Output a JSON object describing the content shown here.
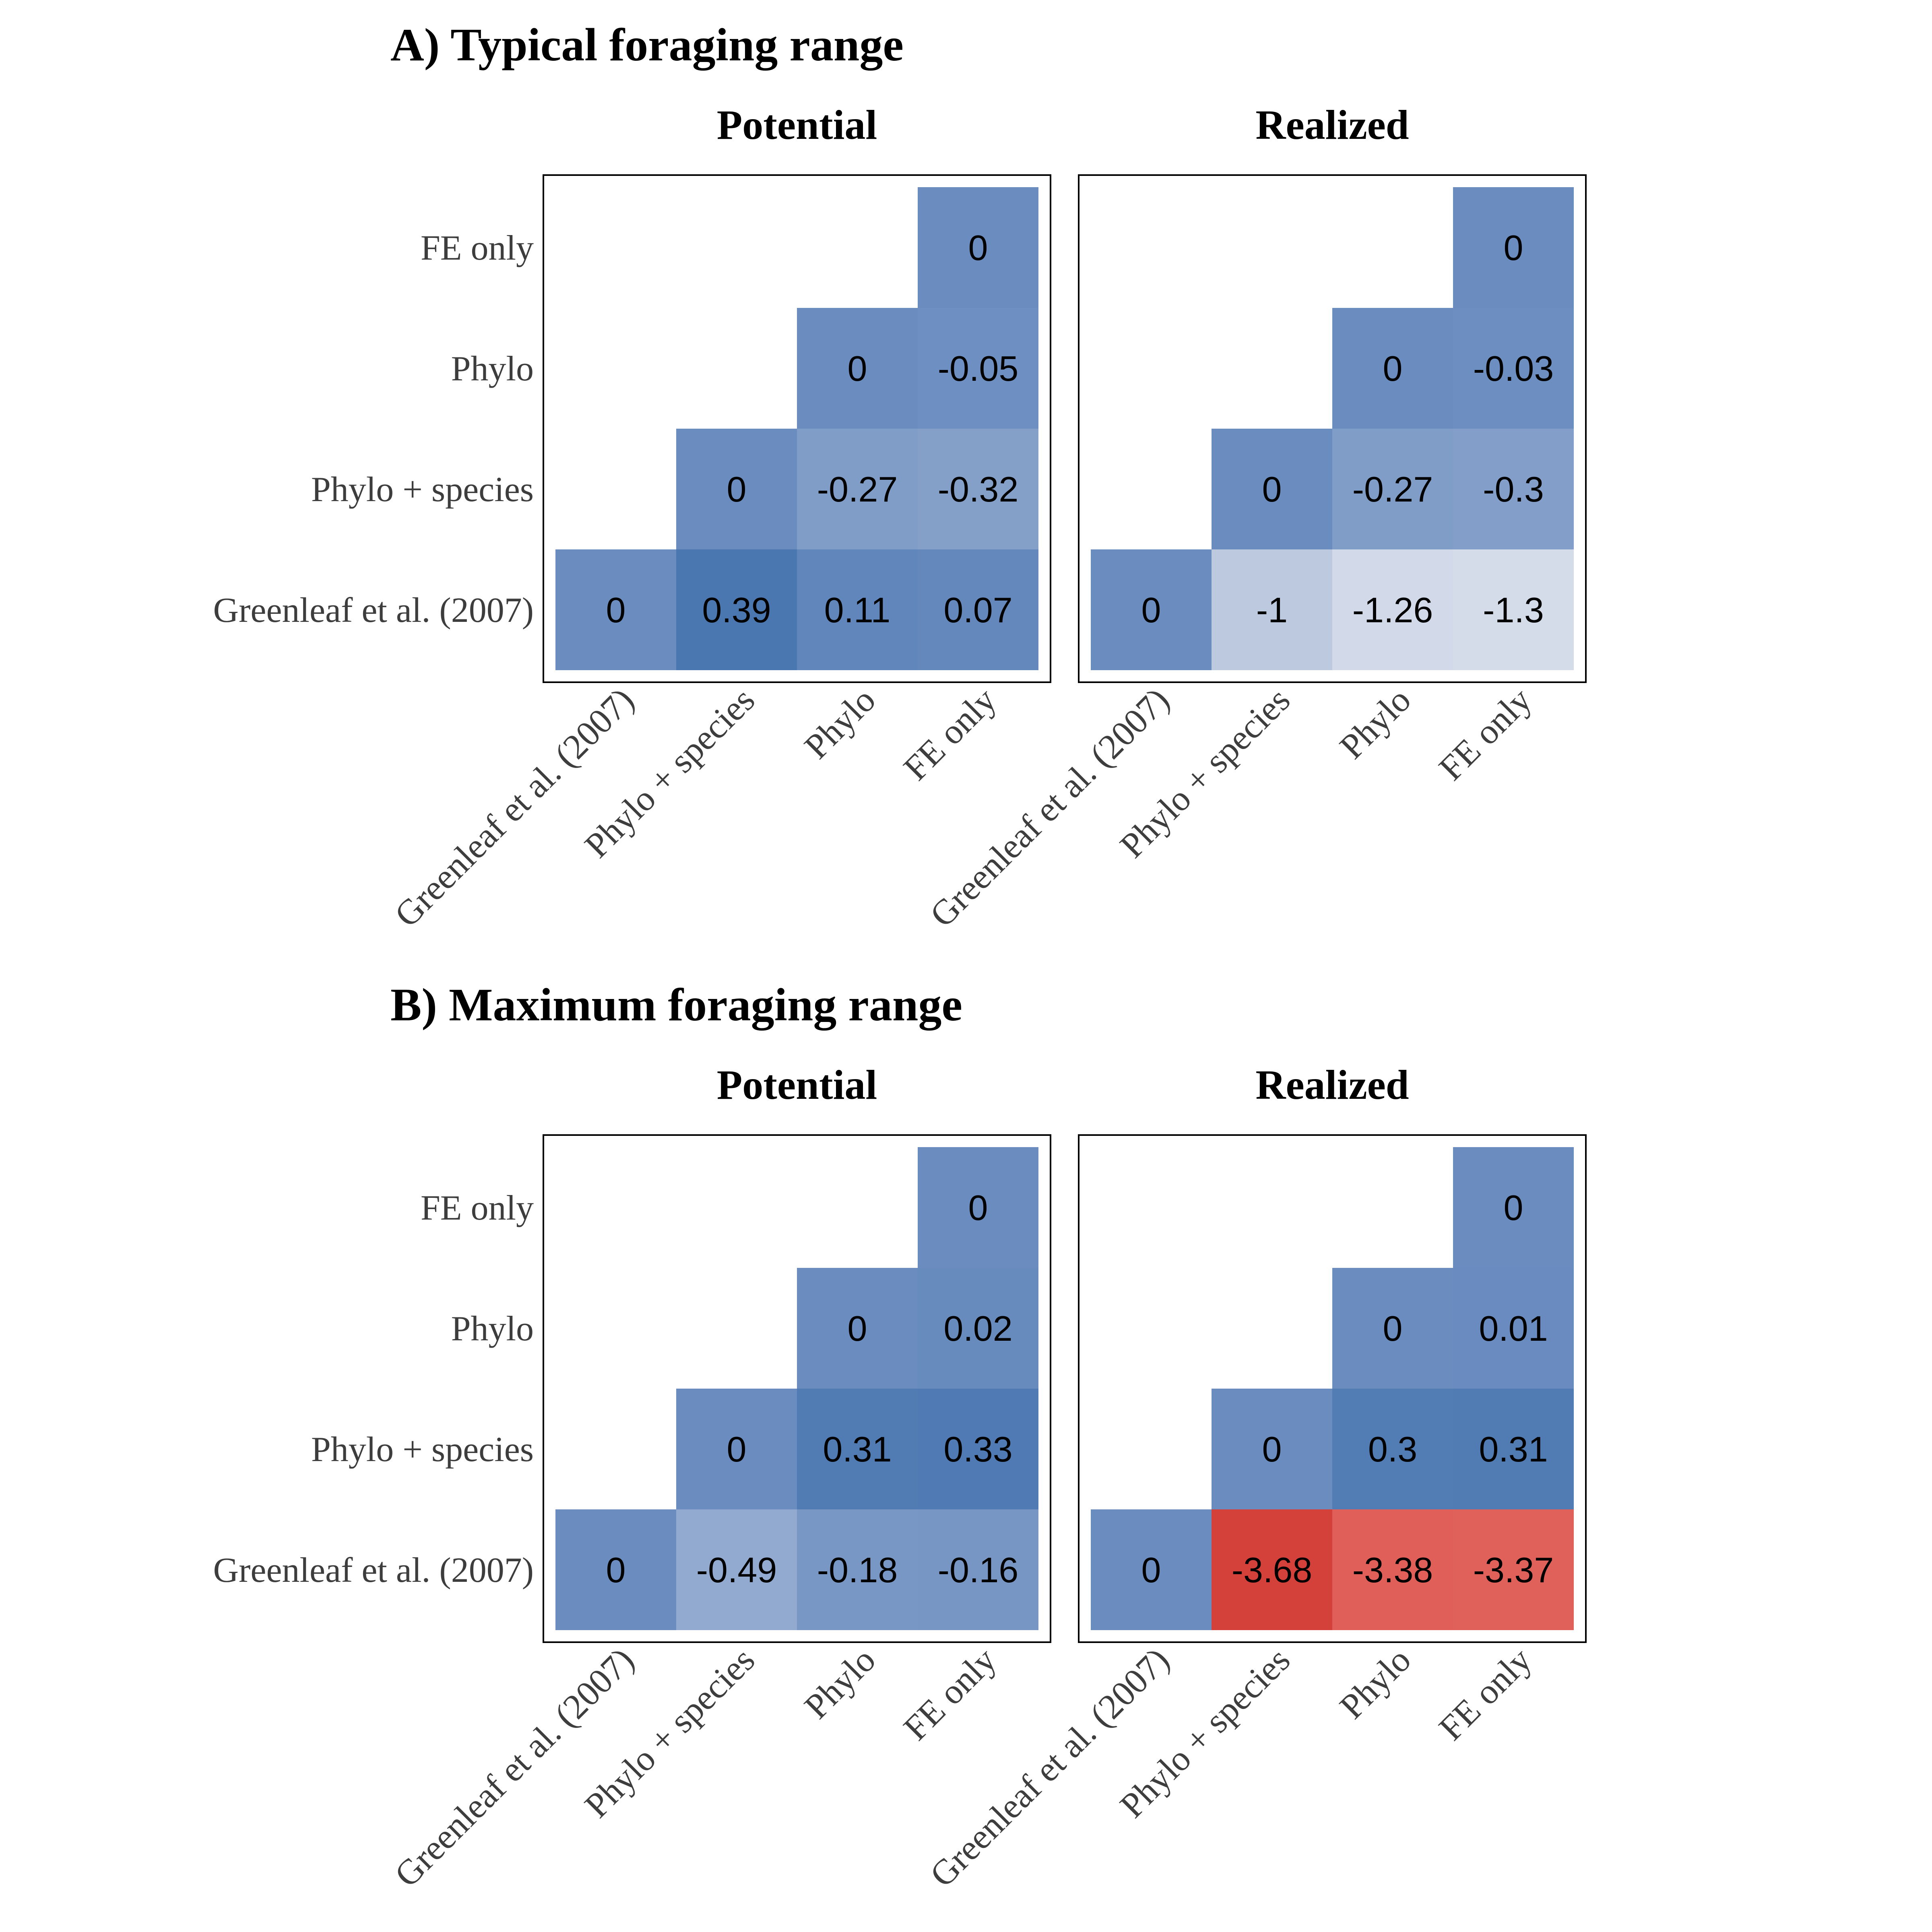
{
  "chart_data": [
    {
      "type": "heatmap",
      "title": "A) Typical foraging range",
      "panels": [
        {
          "name": "Potential",
          "categories": [
            "Greenleaf et al. (2007)",
            "Phylo + species",
            "Phylo",
            "FE only"
          ],
          "cells": [
            {
              "x": "Greenleaf et al. (2007)",
              "y": "Greenleaf et al. (2007)",
              "value": 0,
              "label": "0"
            },
            {
              "x": "Phylo + species",
              "y": "Greenleaf et al. (2007)",
              "value": 0.39,
              "label": "0.39"
            },
            {
              "x": "Phylo",
              "y": "Greenleaf et al. (2007)",
              "value": 0.11,
              "label": "0.11"
            },
            {
              "x": "FE only",
              "y": "Greenleaf et al. (2007)",
              "value": 0.07,
              "label": "0.07"
            },
            {
              "x": "Phylo + species",
              "y": "Phylo + species",
              "value": 0,
              "label": "0"
            },
            {
              "x": "Phylo",
              "y": "Phylo + species",
              "value": -0.27,
              "label": "-0.27"
            },
            {
              "x": "FE only",
              "y": "Phylo + species",
              "value": -0.32,
              "label": "-0.32"
            },
            {
              "x": "Phylo",
              "y": "Phylo",
              "value": 0,
              "label": "0"
            },
            {
              "x": "FE only",
              "y": "Phylo",
              "value": -0.05,
              "label": "-0.05"
            },
            {
              "x": "FE only",
              "y": "FE only",
              "value": 0,
              "label": "0"
            }
          ]
        },
        {
          "name": "Realized",
          "categories": [
            "Greenleaf et al. (2007)",
            "Phylo + species",
            "Phylo",
            "FE only"
          ],
          "cells": [
            {
              "x": "Greenleaf et al. (2007)",
              "y": "Greenleaf et al. (2007)",
              "value": 0,
              "label": "0"
            },
            {
              "x": "Phylo + species",
              "y": "Greenleaf et al. (2007)",
              "value": -1,
              "label": "-1"
            },
            {
              "x": "Phylo",
              "y": "Greenleaf et al. (2007)",
              "value": -1.26,
              "label": "-1.26"
            },
            {
              "x": "FE only",
              "y": "Greenleaf et al. (2007)",
              "value": -1.3,
              "label": "-1.3"
            },
            {
              "x": "Phylo + species",
              "y": "Phylo + species",
              "value": 0,
              "label": "0"
            },
            {
              "x": "Phylo",
              "y": "Phylo + species",
              "value": -0.27,
              "label": "-0.27"
            },
            {
              "x": "FE only",
              "y": "Phylo + species",
              "value": -0.3,
              "label": "-0.3"
            },
            {
              "x": "Phylo",
              "y": "Phylo",
              "value": 0,
              "label": "0"
            },
            {
              "x": "FE only",
              "y": "Phylo",
              "value": -0.03,
              "label": "-0.03"
            },
            {
              "x": "FE only",
              "y": "FE only",
              "value": 0,
              "label": "0"
            }
          ]
        }
      ]
    },
    {
      "type": "heatmap",
      "title": "B) Maximum foraging range",
      "panels": [
        {
          "name": "Potential",
          "categories": [
            "Greenleaf et al. (2007)",
            "Phylo + species",
            "Phylo",
            "FE only"
          ],
          "cells": [
            {
              "x": "Greenleaf et al. (2007)",
              "y": "Greenleaf et al. (2007)",
              "value": 0,
              "label": "0"
            },
            {
              "x": "Phylo + species",
              "y": "Greenleaf et al. (2007)",
              "value": -0.49,
              "label": "-0.49"
            },
            {
              "x": "Phylo",
              "y": "Greenleaf et al. (2007)",
              "value": -0.18,
              "label": "-0.18"
            },
            {
              "x": "FE only",
              "y": "Greenleaf et al. (2007)",
              "value": -0.16,
              "label": "-0.16"
            },
            {
              "x": "Phylo + species",
              "y": "Phylo + species",
              "value": 0,
              "label": "0"
            },
            {
              "x": "Phylo",
              "y": "Phylo + species",
              "value": 0.31,
              "label": "0.31"
            },
            {
              "x": "FE only",
              "y": "Phylo + species",
              "value": 0.33,
              "label": "0.33"
            },
            {
              "x": "Phylo",
              "y": "Phylo",
              "value": 0,
              "label": "0"
            },
            {
              "x": "FE only",
              "y": "Phylo",
              "value": 0.02,
              "label": "0.02"
            },
            {
              "x": "FE only",
              "y": "FE only",
              "value": 0,
              "label": "0"
            }
          ]
        },
        {
          "name": "Realized",
          "categories": [
            "Greenleaf et al. (2007)",
            "Phylo + species",
            "Phylo",
            "FE only"
          ],
          "cells": [
            {
              "x": "Greenleaf et al. (2007)",
              "y": "Greenleaf et al. (2007)",
              "value": 0,
              "label": "0"
            },
            {
              "x": "Phylo + species",
              "y": "Greenleaf et al. (2007)",
              "value": -3.68,
              "label": "-3.68"
            },
            {
              "x": "Phylo",
              "y": "Greenleaf et al. (2007)",
              "value": -3.38,
              "label": "-3.38"
            },
            {
              "x": "FE only",
              "y": "Greenleaf et al. (2007)",
              "value": -3.37,
              "label": "-3.37"
            },
            {
              "x": "Phylo + species",
              "y": "Phylo + species",
              "value": 0,
              "label": "0"
            },
            {
              "x": "Phylo",
              "y": "Phylo + species",
              "value": 0.3,
              "label": "0.3"
            },
            {
              "x": "FE only",
              "y": "Phylo + species",
              "value": 0.31,
              "label": "0.31"
            },
            {
              "x": "Phylo",
              "y": "Phylo",
              "value": 0,
              "label": "0"
            },
            {
              "x": "FE only",
              "y": "Phylo",
              "value": 0.01,
              "label": "0.01"
            },
            {
              "x": "FE only",
              "y": "FE only",
              "value": 0,
              "label": "0"
            }
          ]
        }
      ]
    }
  ],
  "colors": {
    "zero": "#6a8cbf",
    "high": "#4a76b0",
    "light": "#dde2ec",
    "mid": "#8ea6cf",
    "red_dark": "#d4403a",
    "red": "#e0605a",
    "frame": "#000000",
    "axis_text": "#3d3d3d"
  }
}
